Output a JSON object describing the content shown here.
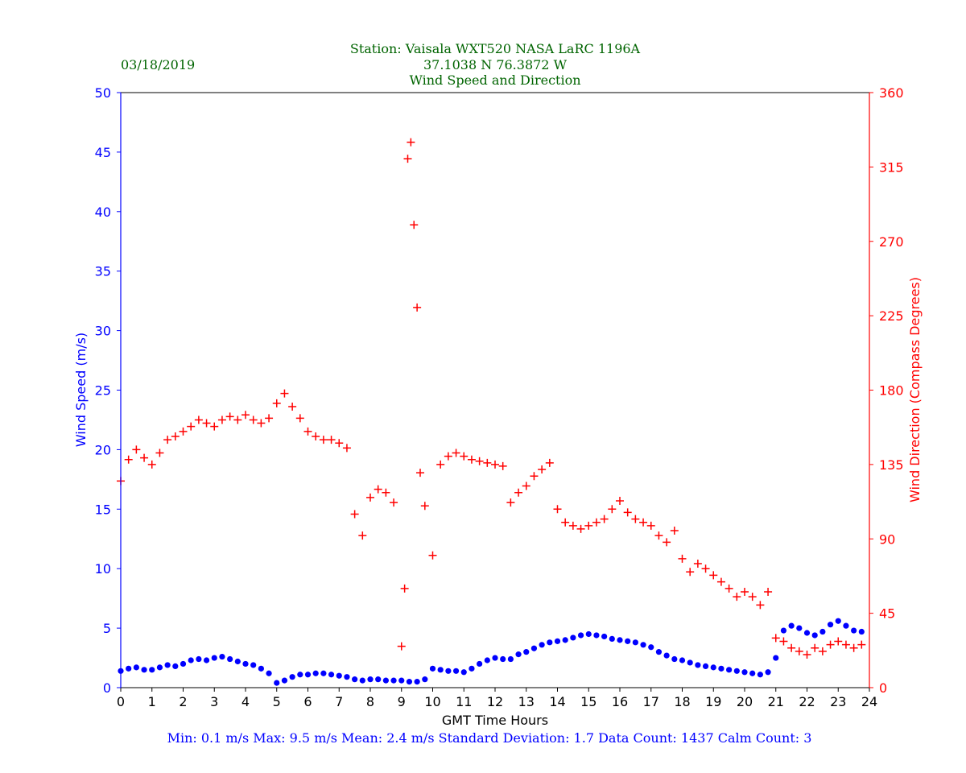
{
  "header": {
    "date": "03/18/2019",
    "station": "Station:  Vaisala WXT520  NASA LaRC 1196A",
    "coords": "37.1038 N 76.3872 W",
    "title": "Wind Speed and Direction"
  },
  "stats_line": "Min: 0.1 m/s   Max: 9.5 m/s   Mean: 2.4 m/s  Standard Deviation: 1.7  Data Count: 1437  Calm Count:  3",
  "colors": {
    "speed": "#0000ff",
    "direction": "#ff0000",
    "header": "#006400"
  },
  "chart_data": {
    "type": "scatter",
    "xlabel": "GMT Time Hours",
    "xlim": [
      0,
      24
    ],
    "xticks": [
      "0",
      "1",
      "2",
      "3",
      "4",
      "5",
      "6",
      "7",
      "8",
      "9",
      "10",
      "11",
      "12",
      "13",
      "14",
      "15",
      "16",
      "17",
      "18",
      "19",
      "20",
      "21",
      "22",
      "23",
      "24"
    ],
    "y_left": {
      "label": "Wind Speed (m/s)",
      "lim": [
        0,
        50
      ],
      "ticks": [
        "0",
        "5",
        "10",
        "15",
        "20",
        "25",
        "30",
        "35",
        "40",
        "45",
        "50"
      ]
    },
    "y_right": {
      "label": "Wind Direction (Compass Degrees)",
      "lim": [
        0,
        360
      ],
      "ticks": [
        "0",
        "45",
        "90",
        "135",
        "180",
        "225",
        "270",
        "315",
        "360"
      ]
    },
    "grid": false,
    "series": [
      {
        "marker": "dot",
        "axis": "left",
        "x": [
          0.0,
          0.25,
          0.5,
          0.75,
          1.0,
          1.25,
          1.5,
          1.75,
          2.0,
          2.25,
          2.5,
          2.75,
          3.0,
          3.25,
          3.5,
          3.75,
          4.0,
          4.25,
          4.5,
          4.75,
          5.0,
          5.25,
          5.5,
          5.75,
          6.0,
          6.25,
          6.5,
          6.75,
          7.0,
          7.25,
          7.5,
          7.75,
          8.0,
          8.25,
          8.5,
          8.75,
          9.0,
          9.25,
          9.5,
          9.75,
          10.0,
          10.25,
          10.5,
          10.75,
          11.0,
          11.25,
          11.5,
          11.75,
          12.0,
          12.25,
          12.5,
          12.75,
          13.0,
          13.25,
          13.5,
          13.75,
          14.0,
          14.25,
          14.5,
          14.75,
          15.0,
          15.25,
          15.5,
          15.75,
          16.0,
          16.25,
          16.5,
          16.75,
          17.0,
          17.25,
          17.5,
          17.75,
          18.0,
          18.25,
          18.5,
          18.75,
          19.0,
          19.25,
          19.5,
          19.75,
          20.0,
          20.25,
          20.5,
          20.75,
          21.0,
          21.25,
          21.5,
          21.75,
          22.0,
          22.25,
          22.5,
          22.75,
          23.0,
          23.25,
          23.5,
          23.75
        ],
        "y": [
          1.4,
          1.6,
          1.7,
          1.5,
          1.5,
          1.7,
          1.9,
          1.8,
          2.0,
          2.3,
          2.4,
          2.3,
          2.5,
          2.6,
          2.4,
          2.2,
          2.0,
          1.9,
          1.6,
          1.2,
          0.4,
          0.6,
          0.9,
          1.1,
          1.1,
          1.2,
          1.2,
          1.1,
          1.0,
          0.9,
          0.7,
          0.6,
          0.7,
          0.7,
          0.6,
          0.6,
          0.6,
          0.5,
          0.5,
          0.7,
          1.6,
          1.5,
          1.4,
          1.4,
          1.3,
          1.6,
          2.0,
          2.3,
          2.5,
          2.4,
          2.4,
          2.8,
          3.0,
          3.3,
          3.6,
          3.8,
          3.9,
          4.0,
          4.2,
          4.4,
          4.5,
          4.4,
          4.3,
          4.1,
          4.0,
          3.9,
          3.8,
          3.6,
          3.4,
          3.0,
          2.7,
          2.4,
          2.3,
          2.1,
          1.9,
          1.8,
          1.7,
          1.6,
          1.5,
          1.4,
          1.3,
          1.2,
          1.1,
          1.3,
          2.5,
          4.8,
          5.2,
          5.0,
          4.6,
          4.4,
          4.7,
          5.3,
          5.6,
          5.2,
          4.8,
          4.7
        ]
      },
      {
        "marker": "plus",
        "axis": "right",
        "x": [
          0.0,
          0.25,
          0.5,
          0.75,
          1.0,
          1.25,
          1.5,
          1.75,
          2.0,
          2.25,
          2.5,
          2.75,
          3.0,
          3.25,
          3.5,
          3.75,
          4.0,
          4.25,
          4.5,
          4.75,
          5.0,
          5.25,
          5.5,
          5.75,
          6.0,
          6.25,
          6.5,
          6.75,
          7.0,
          7.25,
          7.5,
          7.75,
          8.0,
          8.25,
          8.5,
          8.75,
          9.0,
          9.1,
          9.2,
          9.3,
          9.4,
          9.5,
          9.6,
          9.75,
          10.0,
          10.25,
          10.5,
          10.75,
          11.0,
          11.25,
          11.5,
          11.75,
          12.0,
          12.25,
          12.5,
          12.75,
          13.0,
          13.25,
          13.5,
          13.75,
          14.0,
          14.25,
          14.5,
          14.75,
          15.0,
          15.25,
          15.5,
          15.75,
          16.0,
          16.25,
          16.5,
          16.75,
          17.0,
          17.25,
          17.5,
          17.75,
          18.0,
          18.25,
          18.5,
          18.75,
          19.0,
          19.25,
          19.5,
          19.75,
          20.0,
          20.25,
          20.5,
          20.75,
          21.0,
          21.25,
          21.5,
          21.75,
          22.0,
          22.25,
          22.5,
          22.75,
          23.0,
          23.25,
          23.5,
          23.75
        ],
        "y": [
          125,
          138,
          144,
          139,
          135,
          142,
          150,
          152,
          155,
          158,
          162,
          160,
          158,
          162,
          164,
          162,
          165,
          162,
          160,
          163,
          172,
          178,
          170,
          163,
          155,
          152,
          150,
          150,
          148,
          145,
          105,
          92,
          115,
          120,
          118,
          112,
          25,
          60,
          320,
          330,
          280,
          230,
          130,
          110,
          80,
          135,
          140,
          142,
          140,
          138,
          137,
          136,
          135,
          134,
          112,
          118,
          122,
          128,
          132,
          136,
          108,
          100,
          98,
          96,
          98,
          100,
          102,
          108,
          113,
          106,
          102,
          100,
          98,
          92,
          88,
          95,
          78,
          70,
          75,
          72,
          68,
          64,
          60,
          55,
          58,
          55,
          50,
          58,
          30,
          28,
          24,
          22,
          20,
          24,
          22,
          26,
          28,
          26,
          24,
          26
        ]
      }
    ]
  }
}
